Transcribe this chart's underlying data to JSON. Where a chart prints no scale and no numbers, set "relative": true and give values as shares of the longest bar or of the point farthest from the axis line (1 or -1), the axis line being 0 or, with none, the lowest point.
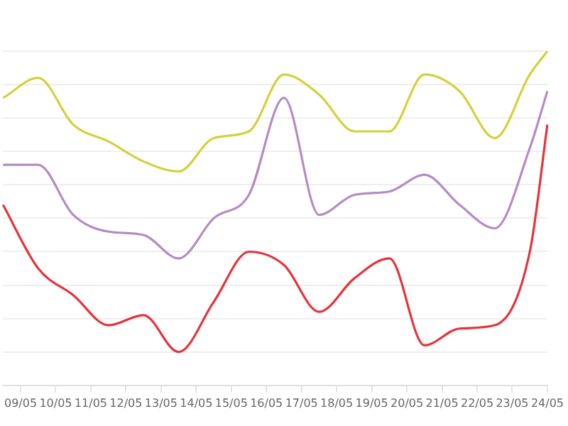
{
  "chart_data": {
    "type": "line",
    "relative": true,
    "grid": "y",
    "legend": false,
    "marker": "none",
    "line_style": "solid",
    "categories": [
      null,
      "09/05",
      null,
      "10/05",
      null,
      "11/05",
      null,
      "12/05",
      null,
      "13/05",
      null,
      "14/05",
      null,
      "15/05",
      null,
      "16/05",
      null,
      "17/05",
      null,
      "18/05",
      null,
      "19/05",
      null,
      "20/05",
      null,
      "21/05",
      null,
      "22/05",
      null,
      "23/05",
      null,
      "24/05"
    ],
    "series": [
      {
        "color": "#d2d23c",
        "values": [
          0.86,
          null,
          0.92,
          null,
          0.78,
          null,
          0.73,
          null,
          0.67,
          null,
          0.64,
          null,
          0.74,
          null,
          0.76,
          null,
          0.93,
          null,
          0.87,
          null,
          0.76,
          null,
          0.76,
          null,
          0.93,
          null,
          0.88,
          null,
          0.74,
          null,
          0.93,
          1.0
        ]
      },
      {
        "color": "#b48cc2",
        "values": [
          0.66,
          null,
          0.66,
          null,
          0.51,
          null,
          0.46,
          null,
          0.45,
          null,
          0.38,
          null,
          0.5,
          null,
          0.57,
          null,
          0.86,
          null,
          0.51,
          null,
          0.57,
          null,
          0.58,
          null,
          0.63,
          null,
          0.54,
          null,
          0.47,
          null,
          0.71,
          0.88
        ]
      },
      {
        "color": "#e8323a",
        "values": [
          0.54,
          null,
          0.35,
          null,
          0.27,
          null,
          0.18,
          null,
          0.21,
          null,
          0.1,
          null,
          0.25,
          null,
          0.4,
          null,
          0.36,
          null,
          0.22,
          null,
          0.32,
          null,
          0.38,
          null,
          0.12,
          null,
          0.17,
          null,
          0.18,
          null,
          0.4,
          0.78
        ]
      }
    ]
  }
}
